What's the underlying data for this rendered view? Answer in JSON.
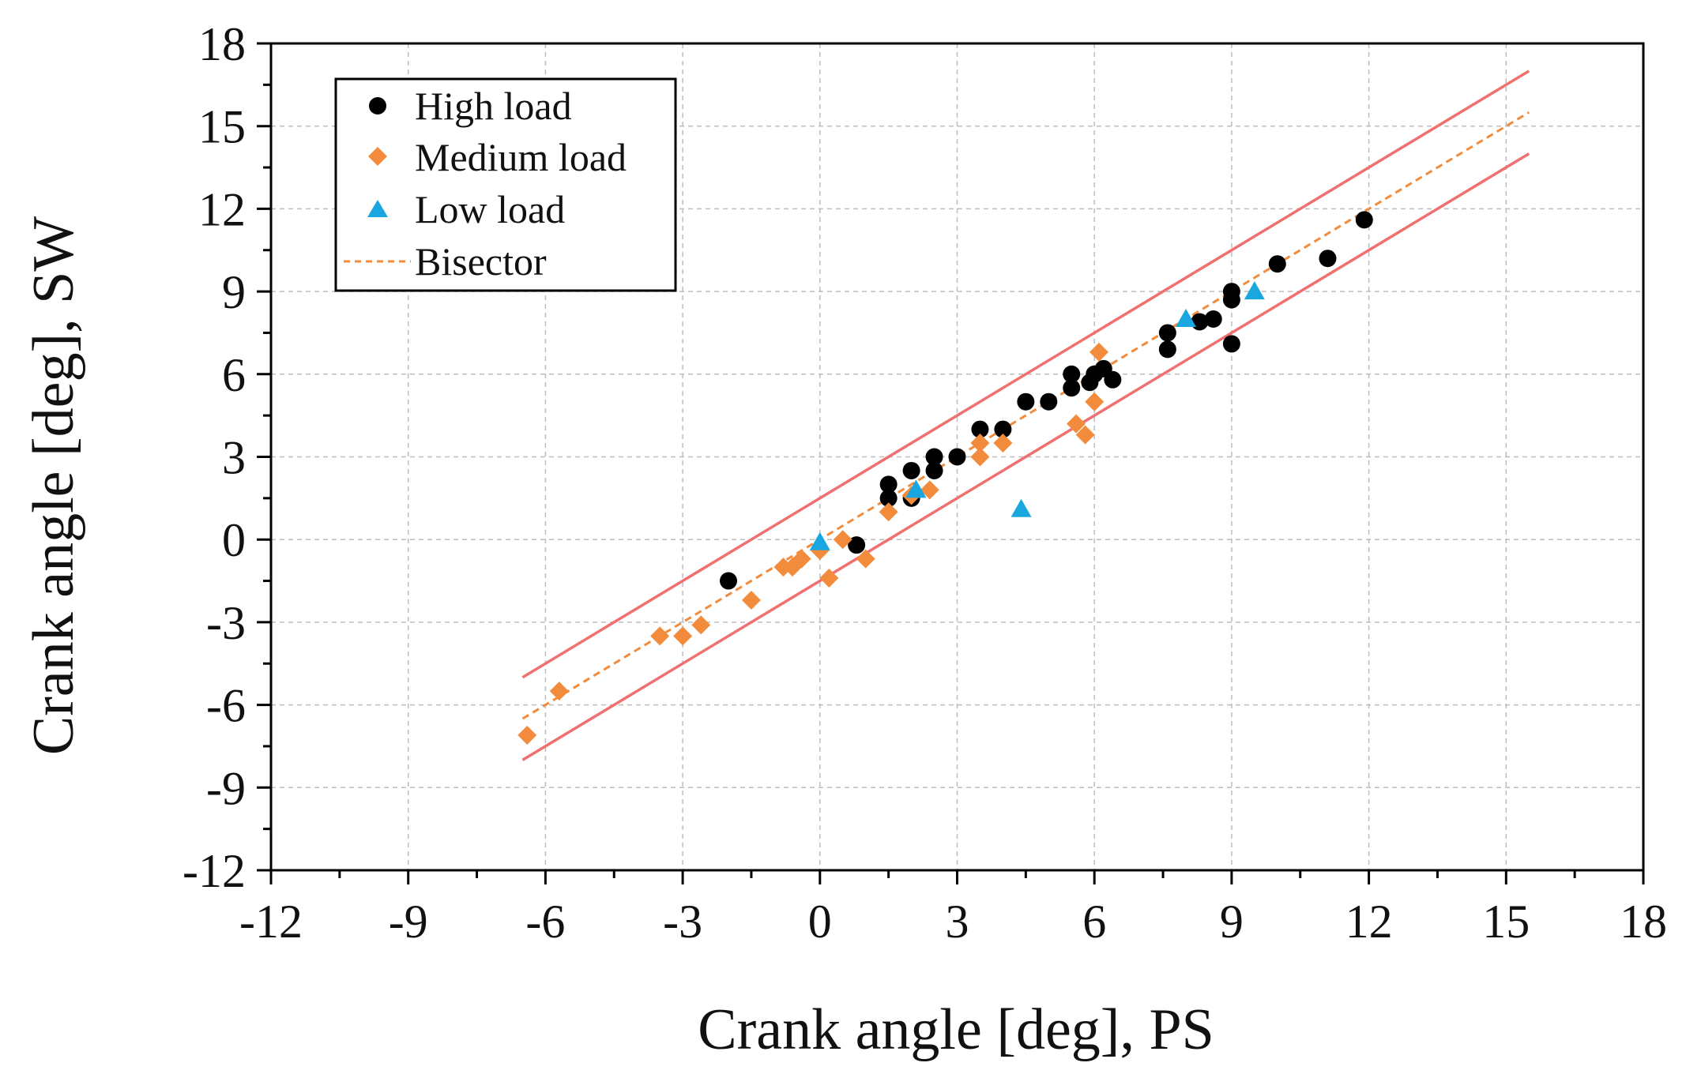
{
  "chart_data": {
    "type": "scatter",
    "title": "",
    "xlabel": "Crank angle [deg], PS",
    "ylabel": "Crank angle [deg], SW",
    "xlim": [
      -12,
      18
    ],
    "ylim": [
      -12,
      18
    ],
    "xticks": [
      -12,
      -9,
      -6,
      -3,
      0,
      3,
      6,
      9,
      12,
      15,
      18
    ],
    "yticks": [
      -12,
      -9,
      -6,
      -3,
      0,
      3,
      6,
      9,
      12,
      15,
      18
    ],
    "x_tick_labels": [
      "-12",
      "-9",
      "-6",
      "-3",
      "0",
      "3",
      "6",
      "9",
      "12",
      "15",
      "18"
    ],
    "y_tick_labels": [
      "-12",
      "-9",
      "-6",
      "-3",
      "0",
      "3",
      "6",
      "9",
      "12",
      "15",
      "18"
    ],
    "grid": true,
    "legend_position": "top-left",
    "series": [
      {
        "name": "High load",
        "marker": "circle",
        "color": "#000000",
        "points": [
          [
            -2.0,
            -1.5
          ],
          [
            0.8,
            -0.2
          ],
          [
            1.5,
            1.5
          ],
          [
            1.5,
            2.0
          ],
          [
            2.0,
            1.5
          ],
          [
            2.0,
            2.5
          ],
          [
            2.5,
            2.5
          ],
          [
            2.5,
            3.0
          ],
          [
            3.0,
            3.0
          ],
          [
            3.5,
            4.0
          ],
          [
            4.0,
            4.0
          ],
          [
            4.5,
            5.0
          ],
          [
            5.0,
            5.0
          ],
          [
            5.5,
            5.5
          ],
          [
            5.5,
            6.0
          ],
          [
            5.9,
            5.7
          ],
          [
            6.0,
            6.0
          ],
          [
            6.2,
            6.2
          ],
          [
            6.4,
            5.8
          ],
          [
            7.6,
            6.9
          ],
          [
            7.6,
            7.5
          ],
          [
            8.3,
            7.9
          ],
          [
            8.6,
            8.0
          ],
          [
            9.0,
            7.1
          ],
          [
            9.0,
            8.7
          ],
          [
            9.0,
            9.0
          ],
          [
            10.0,
            10.0
          ],
          [
            11.1,
            10.2
          ],
          [
            11.9,
            11.6
          ]
        ]
      },
      {
        "name": "Medium load",
        "marker": "diamond",
        "color": "#F28C3C",
        "points": [
          [
            -6.4,
            -7.1
          ],
          [
            -5.7,
            -5.5
          ],
          [
            -3.5,
            -3.5
          ],
          [
            -3.0,
            -3.5
          ],
          [
            -2.6,
            -3.1
          ],
          [
            -1.5,
            -2.2
          ],
          [
            -0.8,
            -1.0
          ],
          [
            -0.6,
            -1.0
          ],
          [
            -0.4,
            -0.7
          ],
          [
            0.0,
            -0.4
          ],
          [
            0.2,
            -1.4
          ],
          [
            0.5,
            0.0
          ],
          [
            1.0,
            -0.7
          ],
          [
            1.5,
            1.0
          ],
          [
            2.0,
            1.6
          ],
          [
            2.4,
            1.8
          ],
          [
            3.5,
            3.0
          ],
          [
            3.5,
            3.5
          ],
          [
            4.0,
            3.5
          ],
          [
            5.6,
            4.2
          ],
          [
            5.8,
            3.8
          ],
          [
            6.0,
            5.0
          ],
          [
            6.1,
            6.8
          ]
        ]
      },
      {
        "name": "Low load",
        "marker": "triangle",
        "color": "#1AA7E0",
        "points": [
          [
            0.0,
            -0.1
          ],
          [
            2.1,
            1.8
          ],
          [
            4.4,
            1.1
          ],
          [
            8.0,
            8.0
          ],
          [
            9.5,
            9.0
          ]
        ]
      }
    ],
    "lines": [
      {
        "name": "Bisector",
        "style": "dashed",
        "color": "#F28C3C",
        "from": [
          -6.5,
          -6.5
        ],
        "to": [
          15.5,
          15.5
        ]
      },
      {
        "name": "",
        "style": "solid",
        "color": "#F07070",
        "from": [
          -6.5,
          -5.0
        ],
        "to": [
          15.5,
          17.0
        ]
      },
      {
        "name": "",
        "style": "solid",
        "color": "#F07070",
        "from": [
          -6.5,
          -8.0
        ],
        "to": [
          15.5,
          14.0
        ]
      }
    ],
    "legend": [
      {
        "label": "High load",
        "symbol": "circle",
        "color": "#000000"
      },
      {
        "label": "Medium load",
        "symbol": "diamond",
        "color": "#F28C3C"
      },
      {
        "label": "Low load",
        "symbol": "triangle",
        "color": "#1AA7E0"
      },
      {
        "label": "Bisector",
        "symbol": "dashed-line",
        "color": "#F28C3C"
      }
    ]
  }
}
